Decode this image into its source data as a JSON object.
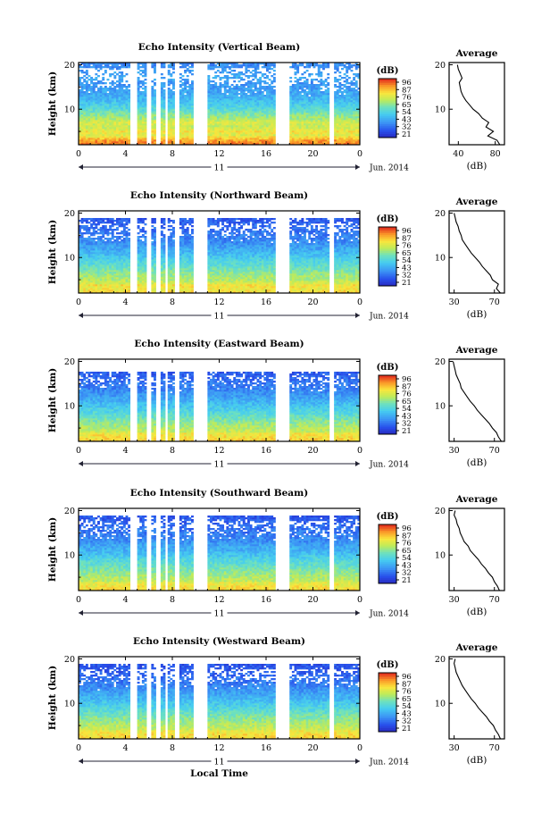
{
  "chart_data": [
    {
      "type": "heatmap",
      "title": "Echo Intensity (Vertical Beam)",
      "xlabel": "",
      "ylabel": "Height (km)",
      "x_ticks": [
        "0",
        "4",
        "8",
        "12",
        "16",
        "20",
        "0"
      ],
      "y_ticks": [
        "10",
        "20"
      ],
      "xlim": [
        0,
        24
      ],
      "ylim": [
        2,
        20.5
      ],
      "date_label": "11",
      "date_suffix": "Jun. 2014",
      "colorbar": {
        "label": "(dB)",
        "ticks": [
          "96",
          "87",
          "76",
          "65",
          "54",
          "43",
          "32",
          "21"
        ],
        "range": [
          21,
          96
        ]
      },
      "gaps": [
        [
          4.5,
          5.0
        ],
        [
          5.8,
          6.2
        ],
        [
          6.6,
          6.9
        ],
        [
          7.4,
          7.6
        ],
        [
          8.2,
          8.5
        ],
        [
          9.8,
          11.0
        ],
        [
          16.8,
          18.0
        ],
        [
          21.3,
          21.7
        ]
      ],
      "echo_top_km": 20.3,
      "average": {
        "title": "Average",
        "xlabel": "(dB)",
        "x_ticks": [
          "40",
          "80"
        ],
        "xlim": [
          30,
          90
        ],
        "y_ticks": [
          "10",
          "20"
        ],
        "profile": [
          [
            2,
            85
          ],
          [
            3,
            82
          ],
          [
            4,
            72
          ],
          [
            5,
            78
          ],
          [
            6,
            70
          ],
          [
            7,
            73
          ],
          [
            8,
            66
          ],
          [
            9,
            62
          ],
          [
            10,
            56
          ],
          [
            11,
            52
          ],
          [
            12,
            48
          ],
          [
            13,
            45
          ],
          [
            14,
            43
          ],
          [
            15,
            42
          ],
          [
            16,
            41
          ],
          [
            17,
            44
          ],
          [
            18,
            42
          ],
          [
            19,
            40
          ],
          [
            20,
            39
          ]
        ]
      }
    },
    {
      "type": "heatmap",
      "title": "Echo Intensity (Northward Beam)",
      "xlabel": "",
      "ylabel": "Height (km)",
      "x_ticks": [
        "0",
        "4",
        "8",
        "12",
        "16",
        "20",
        "0"
      ],
      "y_ticks": [
        "10",
        "20"
      ],
      "xlim": [
        0,
        24
      ],
      "ylim": [
        2,
        20.5
      ],
      "date_label": "11",
      "date_suffix": "Jun. 2014",
      "colorbar": {
        "label": "(dB)",
        "ticks": [
          "96",
          "87",
          "76",
          "65",
          "54",
          "43",
          "32",
          "21"
        ],
        "range": [
          21,
          96
        ]
      },
      "gaps": [
        [
          4.5,
          5.0
        ],
        [
          5.8,
          6.2
        ],
        [
          6.6,
          6.9
        ],
        [
          7.4,
          7.6
        ],
        [
          8.2,
          8.5
        ],
        [
          9.8,
          11.0
        ],
        [
          16.8,
          18.0
        ],
        [
          21.3,
          21.7
        ]
      ],
      "echo_top_km": 18.8,
      "average": {
        "title": "Average",
        "xlabel": "(dB)",
        "x_ticks": [
          "30",
          "70"
        ],
        "xlim": [
          25,
          80
        ],
        "y_ticks": [
          "10",
          "20"
        ],
        "profile": [
          [
            2,
            76
          ],
          [
            3,
            72
          ],
          [
            4,
            74
          ],
          [
            5,
            68
          ],
          [
            6,
            66
          ],
          [
            7,
            62
          ],
          [
            8,
            58
          ],
          [
            9,
            55
          ],
          [
            10,
            51
          ],
          [
            11,
            47
          ],
          [
            12,
            44
          ],
          [
            13,
            41
          ],
          [
            14,
            38
          ],
          [
            15,
            37
          ],
          [
            16,
            35
          ],
          [
            17,
            34
          ],
          [
            18,
            32
          ],
          [
            19,
            31
          ],
          [
            20,
            30
          ]
        ]
      }
    },
    {
      "type": "heatmap",
      "title": "Echo Intensity (Eastward Beam)",
      "xlabel": "",
      "ylabel": "Height (km)",
      "x_ticks": [
        "0",
        "4",
        "8",
        "12",
        "16",
        "20",
        "0"
      ],
      "y_ticks": [
        "10",
        "20"
      ],
      "xlim": [
        0,
        24
      ],
      "ylim": [
        2,
        20.5
      ],
      "date_label": "11",
      "date_suffix": "Jun. 2014",
      "colorbar": {
        "label": "(dB)",
        "ticks": [
          "96",
          "87",
          "76",
          "65",
          "54",
          "43",
          "32",
          "21"
        ],
        "range": [
          21,
          96
        ]
      },
      "gaps": [
        [
          4.5,
          5.0
        ],
        [
          5.8,
          6.2
        ],
        [
          6.6,
          6.9
        ],
        [
          7.4,
          7.6
        ],
        [
          8.2,
          8.5
        ],
        [
          9.8,
          11.0
        ],
        [
          16.8,
          18.0
        ],
        [
          21.3,
          21.7
        ]
      ],
      "echo_top_km": 17.5,
      "average": {
        "title": "Average",
        "xlabel": "(dB)",
        "x_ticks": [
          "30",
          "70"
        ],
        "xlim": [
          25,
          80
        ],
        "y_ticks": [
          "10",
          "20"
        ],
        "profile": [
          [
            2,
            77
          ],
          [
            3,
            74
          ],
          [
            4,
            72
          ],
          [
            5,
            68
          ],
          [
            6,
            65
          ],
          [
            7,
            61
          ],
          [
            8,
            57
          ],
          [
            9,
            53
          ],
          [
            10,
            50
          ],
          [
            11,
            46
          ],
          [
            12,
            43
          ],
          [
            13,
            40
          ],
          [
            14,
            37
          ],
          [
            15,
            36
          ],
          [
            16,
            34
          ],
          [
            17,
            32
          ],
          [
            18,
            31
          ],
          [
            19,
            30
          ],
          [
            20,
            29
          ]
        ]
      }
    },
    {
      "type": "heatmap",
      "title": "Echo Intensity (Southward Beam)",
      "xlabel": "",
      "ylabel": "Height (km)",
      "x_ticks": [
        "0",
        "4",
        "8",
        "12",
        "16",
        "20",
        "0"
      ],
      "y_ticks": [
        "10",
        "20"
      ],
      "xlim": [
        0,
        24
      ],
      "ylim": [
        2,
        20.5
      ],
      "date_label": "11",
      "date_suffix": "Jun. 2014",
      "colorbar": {
        "label": "(dB)",
        "ticks": [
          "96",
          "87",
          "76",
          "65",
          "54",
          "43",
          "32",
          "21"
        ],
        "range": [
          21,
          96
        ]
      },
      "gaps": [
        [
          4.5,
          5.0
        ],
        [
          5.8,
          6.2
        ],
        [
          6.6,
          6.9
        ],
        [
          7.4,
          7.6
        ],
        [
          8.2,
          8.5
        ],
        [
          9.8,
          11.0
        ],
        [
          16.8,
          18.0
        ],
        [
          21.3,
          21.7
        ]
      ],
      "echo_top_km": 19.0,
      "average": {
        "title": "Average",
        "xlabel": "(dB)",
        "x_ticks": [
          "30",
          "70"
        ],
        "xlim": [
          25,
          80
        ],
        "y_ticks": [
          "10",
          "20"
        ],
        "profile": [
          [
            2,
            75
          ],
          [
            3,
            73
          ],
          [
            4,
            70
          ],
          [
            5,
            68
          ],
          [
            6,
            64
          ],
          [
            7,
            61
          ],
          [
            8,
            57
          ],
          [
            9,
            54
          ],
          [
            10,
            50
          ],
          [
            11,
            46
          ],
          [
            12,
            44
          ],
          [
            13,
            40
          ],
          [
            14,
            38
          ],
          [
            15,
            36
          ],
          [
            16,
            35
          ],
          [
            17,
            33
          ],
          [
            18,
            32
          ],
          [
            19,
            30
          ],
          [
            20,
            31
          ]
        ]
      }
    },
    {
      "type": "heatmap",
      "title": "Echo Intensity (Westward Beam)",
      "xlabel": "Local Time",
      "ylabel": "Height (km)",
      "x_ticks": [
        "0",
        "4",
        "8",
        "12",
        "16",
        "20",
        "0"
      ],
      "y_ticks": [
        "10",
        "20"
      ],
      "xlim": [
        0,
        24
      ],
      "ylim": [
        2,
        20.5
      ],
      "date_label": "11",
      "date_suffix": "Jun. 2014",
      "colorbar": {
        "label": "(dB)",
        "ticks": [
          "96",
          "87",
          "76",
          "65",
          "54",
          "43",
          "32",
          "21"
        ],
        "range": [
          21,
          96
        ]
      },
      "gaps": [
        [
          4.5,
          5.0
        ],
        [
          5.8,
          6.2
        ],
        [
          6.6,
          6.9
        ],
        [
          7.4,
          7.6
        ],
        [
          8.2,
          8.5
        ],
        [
          9.8,
          11.0
        ],
        [
          16.8,
          18.0
        ],
        [
          21.3,
          21.7
        ]
      ],
      "echo_top_km": 18.9,
      "average": {
        "title": "Average",
        "xlabel": "(dB)",
        "x_ticks": [
          "30",
          "70"
        ],
        "xlim": [
          25,
          80
        ],
        "y_ticks": [
          "10",
          "20"
        ],
        "profile": [
          [
            2,
            76
          ],
          [
            3,
            74
          ],
          [
            4,
            71
          ],
          [
            5,
            69
          ],
          [
            6,
            65
          ],
          [
            7,
            62
          ],
          [
            8,
            58
          ],
          [
            9,
            54
          ],
          [
            10,
            51
          ],
          [
            11,
            47
          ],
          [
            12,
            44
          ],
          [
            13,
            41
          ],
          [
            14,
            38
          ],
          [
            15,
            36
          ],
          [
            16,
            34
          ],
          [
            17,
            32
          ],
          [
            18,
            31
          ],
          [
            19,
            30
          ],
          [
            20,
            31
          ]
        ]
      }
    }
  ]
}
